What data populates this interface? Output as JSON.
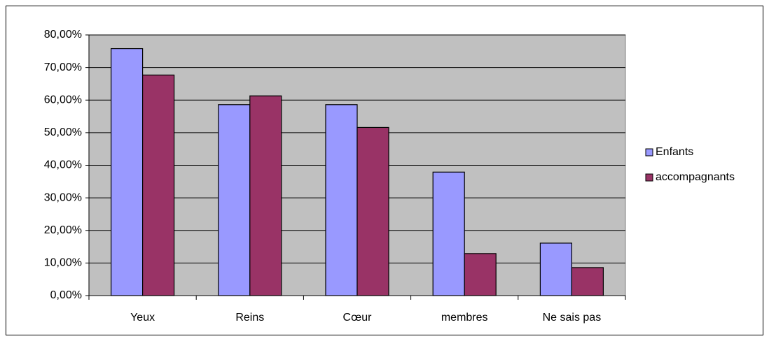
{
  "chart_data": {
    "type": "bar",
    "categories": [
      "Yeux",
      "Reins",
      "Cœur",
      "membres",
      "Ne sais pas"
    ],
    "series": [
      {
        "name": "Enfants",
        "color": "#9999ff",
        "values": [
          75.8,
          58.6,
          58.6,
          37.9,
          16.1
        ]
      },
      {
        "name": "accompagnants",
        "color": "#993366",
        "values": [
          67.7,
          61.3,
          51.6,
          12.9,
          8.6
        ]
      }
    ],
    "ylim": [
      0,
      80
    ],
    "yticks": [
      {
        "value": 0,
        "label": "0,00%"
      },
      {
        "value": 10,
        "label": "10,00%"
      },
      {
        "value": 20,
        "label": "20,00%"
      },
      {
        "value": 30,
        "label": "30,00%"
      },
      {
        "value": 40,
        "label": "40,00%"
      },
      {
        "value": 50,
        "label": "50,00%"
      },
      {
        "value": 60,
        "label": "60,00%"
      },
      {
        "value": 70,
        "label": "70,00%"
      },
      {
        "value": 80,
        "label": "80,00%"
      }
    ],
    "grid": true,
    "legend": "right"
  }
}
